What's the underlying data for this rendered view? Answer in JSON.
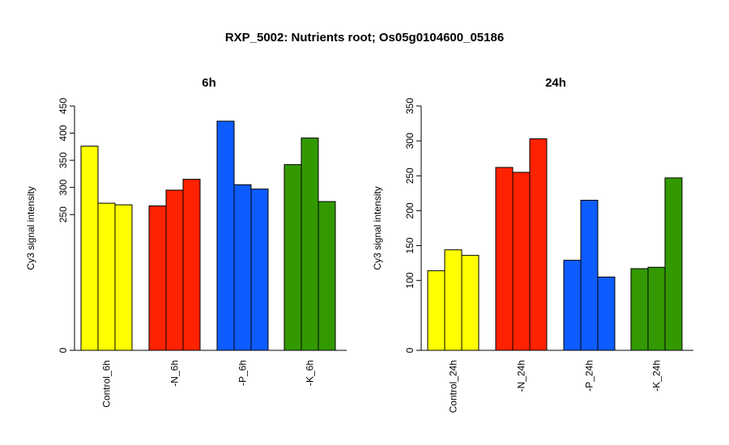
{
  "title": "RXP_5002: Nutrients root; Os05g0104600_05186",
  "chart_data": [
    {
      "type": "bar",
      "title": "6h",
      "ylabel": "Cy3 signal intensity",
      "ylim": [
        0,
        450
      ],
      "yticks": [
        0,
        250,
        300,
        350,
        400,
        450
      ],
      "categories": [
        "Control_6h",
        "-N_6h",
        "-P_6h",
        "-K_6h"
      ],
      "groups": [
        {
          "category": "Control_6h",
          "color": "#FFFF00",
          "values": [
            376,
            271,
            268
          ]
        },
        {
          "category": "-N_6h",
          "color": "#FF2200",
          "values": [
            266,
            295,
            315
          ]
        },
        {
          "category": "-P_6h",
          "color": "#0D5CFF",
          "values": [
            422,
            305,
            297
          ]
        },
        {
          "category": "-K_6h",
          "color": "#339900",
          "values": [
            342,
            391,
            274
          ]
        }
      ]
    },
    {
      "type": "bar",
      "title": "24h",
      "ylabel": "Cy3 signal intensity",
      "ylim": [
        0,
        350
      ],
      "yticks": [
        0,
        100,
        150,
        200,
        250,
        300,
        350
      ],
      "categories": [
        "Control_24h",
        "-N_24h",
        "-P_24h",
        "-K_24h"
      ],
      "groups": [
        {
          "category": "Control_24h",
          "color": "#FFFF00",
          "values": [
            114,
            144,
            136
          ]
        },
        {
          "category": "-N_24h",
          "color": "#FF2200",
          "values": [
            262,
            255,
            303
          ]
        },
        {
          "category": "-P_24h",
          "color": "#0D5CFF",
          "values": [
            129,
            215,
            105
          ]
        },
        {
          "category": "-K_24h",
          "color": "#339900",
          "values": [
            117,
            119,
            247
          ]
        }
      ]
    }
  ]
}
